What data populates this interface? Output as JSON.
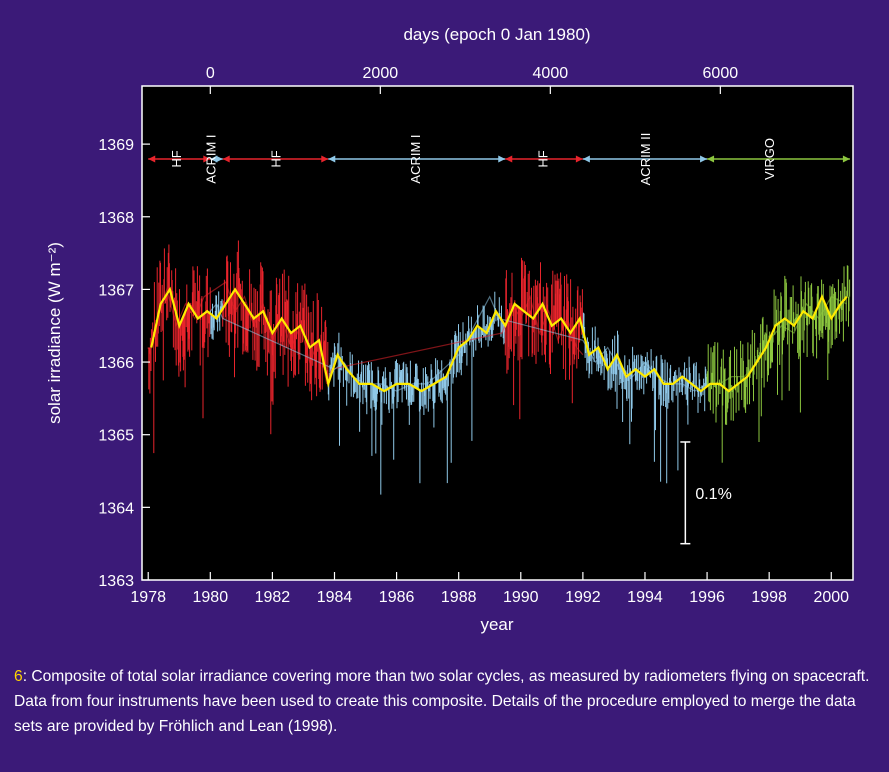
{
  "caption": {
    "figure_number": "6",
    "text": ": Composite of total solar irradiance covering more than two solar cycles, as measured by radiometers flying on spacecraft. Data from four instruments have been used to create this composite. Details of the procedure employed to merge the data sets are provided by Fröhlich and Lean (1998)."
  },
  "colors": {
    "background": "#3b1a78",
    "plot_background": "#000000",
    "hf": "#e8242c",
    "acrim": "#8fc8e8",
    "virgo": "#8cc63f",
    "smooth": "#ffeb00",
    "text": "#ffffff"
  },
  "chart_data": {
    "type": "line",
    "xlabel": "year",
    "ylabel": "solar irradiance (W m⁻²)",
    "top_axis_label": "days (epoch 0 Jan 1980)",
    "xlim": [
      1977.8,
      2000.7
    ],
    "ylim": [
      1363,
      1369.8
    ],
    "x_ticks": [
      1978,
      1980,
      1982,
      1984,
      1986,
      1988,
      1990,
      1992,
      1994,
      1996,
      1998,
      2000
    ],
    "x_tick_labels": [
      "1978",
      "1980",
      "1982",
      "1984",
      "1986",
      "1988",
      "1990",
      "1992",
      "1994",
      "1996",
      "1998",
      "2000"
    ],
    "y_ticks": [
      1363,
      1364,
      1365,
      1366,
      1367,
      1368,
      1369
    ],
    "y_tick_labels": [
      "1363",
      "1364",
      "1365",
      "1366",
      "1367",
      "1368",
      "1369"
    ],
    "top_ticks_days": [
      0,
      2000,
      4000,
      6000
    ],
    "top_tick_labels": [
      "0",
      "2000",
      "4000",
      "6000"
    ],
    "instrument_segments": [
      {
        "name": "HF",
        "start": 1978.0,
        "end": 1980.0,
        "color": "hf",
        "label_year": 1978.9
      },
      {
        "name": "ACRIM I",
        "start": 1980.0,
        "end": 1980.4,
        "color": "acrim",
        "label_year": 1980.0
      },
      {
        "name": "HF",
        "start": 1980.4,
        "end": 1983.8,
        "color": "hf",
        "label_year": 1982.1
      },
      {
        "name": "ACRIM I",
        "start": 1983.8,
        "end": 1989.5,
        "color": "acrim",
        "label_year": 1986.6
      },
      {
        "name": "HF",
        "start": 1989.5,
        "end": 1992.0,
        "color": "hf",
        "label_year": 1990.7
      },
      {
        "name": "ACRIM II",
        "start": 1992.0,
        "end": 1996.0,
        "color": "acrim",
        "label_year": 1994.0
      },
      {
        "name": "VIRGO",
        "start": 1996.0,
        "end": 2000.6,
        "color": "virgo",
        "label_year": 1998.0
      }
    ],
    "scale_bar": {
      "label": "0.1%",
      "year": 1995.3,
      "y_from": 1363.5,
      "y_to": 1364.9
    },
    "series": [
      {
        "name": "HF",
        "color": "hf",
        "x": [
          1978.05,
          1978.3,
          1978.6,
          1978.9,
          1979.2,
          1979.5,
          1979.8,
          1980.5,
          1980.8,
          1981.1,
          1981.4,
          1981.7,
          1982.0,
          1982.3,
          1982.6,
          1982.9,
          1983.2,
          1983.5,
          1983.75,
          1983.9,
          1989.4,
          1989.7,
          1990.0,
          1990.3,
          1990.6,
          1990.9,
          1991.2,
          1991.5,
          1991.8,
          1992.0
        ],
        "y": [
          1366.1,
          1366.6,
          1367.0,
          1366.5,
          1366.8,
          1366.6,
          1366.9,
          1367.1,
          1366.7,
          1366.9,
          1366.5,
          1366.8,
          1366.3,
          1366.6,
          1366.2,
          1366.5,
          1366.0,
          1366.3,
          1365.7,
          1365.9,
          1366.4,
          1366.8,
          1366.6,
          1366.9,
          1366.4,
          1366.7,
          1366.3,
          1366.6,
          1366.2,
          1366.1
        ]
      },
      {
        "name": "ACRIM",
        "color": "acrim",
        "x": [
          1980.0,
          1980.2,
          1980.4,
          1984.0,
          1984.3,
          1984.6,
          1985.0,
          1985.5,
          1986.0,
          1986.5,
          1987.0,
          1987.5,
          1988.0,
          1988.5,
          1989.0,
          1989.3,
          1992.0,
          1992.4,
          1992.8,
          1993.2,
          1993.6,
          1994.0,
          1994.4,
          1994.8,
          1995.2,
          1995.6,
          1996.0
        ],
        "y": [
          1366.7,
          1366.8,
          1366.6,
          1365.9,
          1366.0,
          1365.8,
          1365.7,
          1365.7,
          1365.6,
          1365.7,
          1365.7,
          1365.9,
          1366.1,
          1366.5,
          1366.9,
          1366.6,
          1366.3,
          1366.0,
          1366.2,
          1365.9,
          1365.8,
          1366.0,
          1365.8,
          1365.7,
          1365.7,
          1365.6,
          1365.7
        ]
      },
      {
        "name": "VIRGO",
        "color": "virgo",
        "x": [
          1996.0,
          1996.4,
          1996.8,
          1997.2,
          1997.6,
          1998.0,
          1998.4,
          1998.8,
          1999.2,
          1999.6,
          2000.0,
          2000.5
        ],
        "y": [
          1365.7,
          1365.7,
          1365.8,
          1365.8,
          1366.0,
          1366.3,
          1366.5,
          1366.4,
          1366.8,
          1366.6,
          1366.9,
          1366.8
        ]
      },
      {
        "name": "smoothed composite",
        "color": "smooth",
        "x": [
          1978.1,
          1978.4,
          1978.7,
          1979.0,
          1979.3,
          1979.6,
          1979.9,
          1980.2,
          1980.5,
          1980.8,
          1981.1,
          1981.4,
          1981.7,
          1982.0,
          1982.3,
          1982.6,
          1982.9,
          1983.2,
          1983.5,
          1983.8,
          1984.1,
          1984.4,
          1984.8,
          1985.2,
          1985.6,
          1986.0,
          1986.4,
          1986.8,
          1987.2,
          1987.6,
          1988.0,
          1988.3,
          1988.6,
          1988.9,
          1989.2,
          1989.5,
          1989.8,
          1990.1,
          1990.4,
          1990.7,
          1991.0,
          1991.3,
          1991.6,
          1991.9,
          1992.2,
          1992.5,
          1992.8,
          1993.1,
          1993.4,
          1993.7,
          1994.0,
          1994.3,
          1994.6,
          1994.9,
          1995.2,
          1995.5,
          1995.8,
          1996.1,
          1996.4,
          1996.7,
          1997.0,
          1997.3,
          1997.6,
          1997.9,
          1998.2,
          1998.5,
          1998.8,
          1999.1,
          1999.4,
          1999.7,
          2000.0,
          2000.3,
          2000.5
        ],
        "y": [
          1366.2,
          1366.8,
          1367.0,
          1366.5,
          1366.8,
          1366.6,
          1366.7,
          1366.6,
          1366.8,
          1367.0,
          1366.8,
          1366.6,
          1366.7,
          1366.4,
          1366.6,
          1366.4,
          1366.5,
          1366.2,
          1366.3,
          1365.7,
          1366.1,
          1365.9,
          1365.7,
          1365.7,
          1365.6,
          1365.7,
          1365.7,
          1365.6,
          1365.7,
          1365.8,
          1366.2,
          1366.3,
          1366.5,
          1366.4,
          1366.7,
          1366.5,
          1366.8,
          1366.7,
          1366.6,
          1366.8,
          1366.5,
          1366.6,
          1366.4,
          1366.6,
          1366.1,
          1366.2,
          1365.9,
          1366.1,
          1365.8,
          1365.9,
          1365.8,
          1365.9,
          1365.7,
          1365.7,
          1365.8,
          1365.7,
          1365.6,
          1365.7,
          1365.7,
          1365.6,
          1365.7,
          1365.8,
          1366.0,
          1366.2,
          1366.5,
          1366.6,
          1366.5,
          1366.7,
          1366.6,
          1366.9,
          1366.6,
          1366.8,
          1366.9
        ]
      }
    ]
  }
}
